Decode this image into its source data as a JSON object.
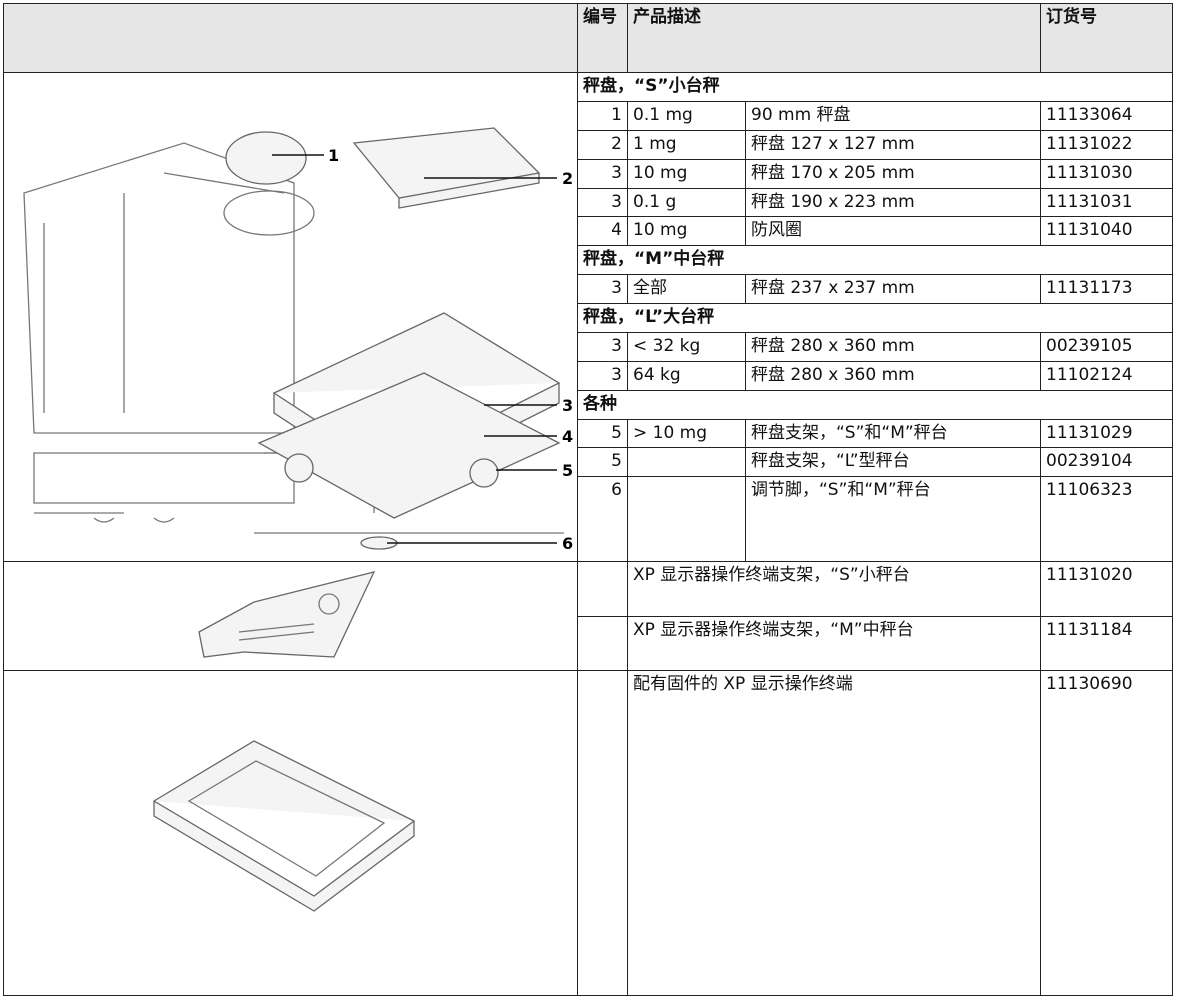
{
  "table": {
    "header": {
      "number": "编号",
      "description": "产品描述",
      "order_number": "订货号"
    },
    "sections": [
      {
        "title": "秤盘，“S”小台秤",
        "rows": [
          {
            "number": "1",
            "spec": "0.1 mg",
            "description": "90 mm 秤盘",
            "order_number": "11133064"
          },
          {
            "number": "2",
            "spec": "1 mg",
            "description": "秤盘 127 x 127 mm",
            "order_number": "11131022"
          },
          {
            "number": "3",
            "spec": "10 mg",
            "description": "秤盘 170 x 205 mm",
            "order_number": "11131030"
          },
          {
            "number": "3",
            "spec": "0.1 g",
            "description": "秤盘 190 x 223 mm",
            "order_number": "11131031"
          },
          {
            "number": "4",
            "spec": "10 mg",
            "description": "防风圈",
            "order_number": "11131040"
          }
        ]
      },
      {
        "title": "秤盘，“M”中台秤",
        "rows": [
          {
            "number": "3",
            "spec": "全部",
            "description": "秤盘 237 x 237 mm",
            "order_number": "11131173"
          }
        ]
      },
      {
        "title": "秤盘，“L”大台秤",
        "rows": [
          {
            "number": "3",
            "spec": "< 32 kg",
            "description": "秤盘 280 x 360 mm",
            "order_number": "00239105"
          },
          {
            "number": "3",
            "spec": "64 kg",
            "description": "秤盘 280 x 360 mm",
            "order_number": "11102124"
          }
        ]
      },
      {
        "title": "各种",
        "rows": [
          {
            "number": "5",
            "spec": "> 10 mg",
            "description": "秤盘支架，“S”和“M”秤台",
            "order_number": "11131029"
          },
          {
            "number": "5",
            "description": "秤盘支架，“L”型秤台",
            "order_number": "00239104"
          },
          {
            "number": "6",
            "description": "调节脚，“S”和“M”秤台",
            "order_number": "11106323"
          }
        ]
      }
    ],
    "terminal_supports": [
      {
        "description": "XP 显示器操作终端支架，“S”小秤台",
        "order_number": "11131020"
      },
      {
        "description": "XP 显示器操作终端支架，“M”中秤台",
        "order_number": "11131184"
      }
    ],
    "terminal": {
      "description": "配有固件的 XP 显示操作终端",
      "order_number": "11130690"
    }
  },
  "figure_callouts": [
    "1",
    "2",
    "3",
    "4",
    "5",
    "6"
  ]
}
